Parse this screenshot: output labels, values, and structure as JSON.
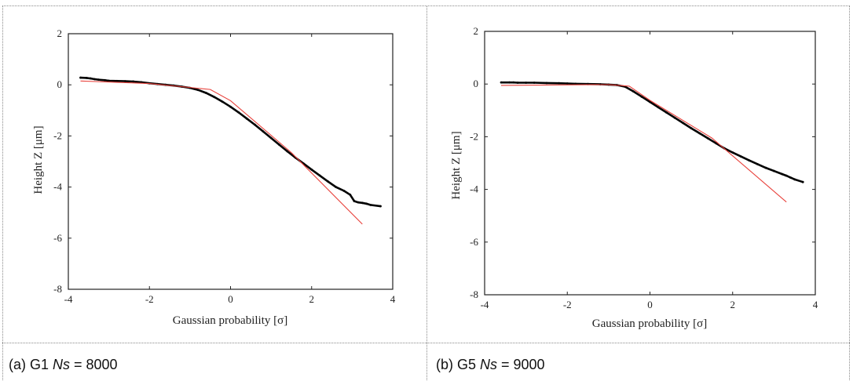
{
  "captions": [
    {
      "prefix": "(a) G1 ",
      "ns_label": "Ns",
      "suffix": " = 8000"
    },
    {
      "prefix": "(b) G5 ",
      "ns_label": "Ns",
      "suffix": " = 9000"
    }
  ],
  "chart_data": [
    {
      "type": "scatter",
      "title": "",
      "xlabel": "Gaussian probability [σ]",
      "ylabel": "Height Z [μm]",
      "xlim": [
        -4,
        4
      ],
      "ylim": [
        -8,
        2
      ],
      "xticks": [
        -4,
        -2,
        0,
        2,
        4
      ],
      "yticks": [
        -8,
        -6,
        -4,
        -2,
        0,
        2
      ],
      "grid": false,
      "marker_color": "#000000",
      "fit_color": "#e8413b",
      "series": [
        {
          "kind": "points",
          "x": [
            -3.7,
            -3.55,
            -3.45,
            -3.35,
            -3.25,
            -3.1,
            -3.0,
            -2.8,
            -2.6,
            -2.4,
            -2.2,
            -2.0,
            -1.8,
            -1.6,
            -1.4,
            -1.2,
            -1.0,
            -0.8,
            -0.6,
            -0.4,
            -0.2,
            0.0,
            0.2,
            0.4,
            0.6,
            0.8,
            1.0,
            1.2,
            1.4,
            1.6,
            1.8,
            2.0,
            2.2,
            2.4,
            2.6,
            2.8,
            2.95,
            3.05,
            3.15,
            3.25,
            3.35,
            3.45,
            3.7
          ],
          "y": [
            0.28,
            0.27,
            0.25,
            0.22,
            0.2,
            0.18,
            0.16,
            0.15,
            0.14,
            0.13,
            0.1,
            0.06,
            0.03,
            0.0,
            -0.03,
            -0.07,
            -0.12,
            -0.2,
            -0.32,
            -0.48,
            -0.66,
            -0.86,
            -1.08,
            -1.32,
            -1.56,
            -1.82,
            -2.08,
            -2.34,
            -2.6,
            -2.85,
            -3.08,
            -3.32,
            -3.55,
            -3.78,
            -4.0,
            -4.15,
            -4.3,
            -4.55,
            -4.6,
            -4.62,
            -4.65,
            -4.7,
            -4.75
          ]
        },
        {
          "kind": "fit_line",
          "x": [
            -3.7,
            -2.0,
            -0.5,
            0.0,
            1.5,
            3.25
          ],
          "y": [
            0.15,
            0.05,
            -0.18,
            -0.62,
            -2.65,
            -5.45
          ]
        }
      ]
    },
    {
      "type": "scatter",
      "title": "",
      "xlabel": "Gaussian probability [σ]",
      "ylabel": "Height Z [μm]",
      "xlim": [
        -4,
        4
      ],
      "ylim": [
        -8,
        2
      ],
      "xticks": [
        -4,
        -2,
        0,
        2,
        4
      ],
      "yticks": [
        -8,
        -6,
        -4,
        -2,
        0,
        2
      ],
      "grid": false,
      "marker_color": "#000000",
      "fit_color": "#e8413b",
      "series": [
        {
          "kind": "points",
          "x": [
            -3.6,
            -3.4,
            -3.3,
            -3.2,
            -3.0,
            -2.8,
            -2.5,
            -2.2,
            -2.0,
            -1.8,
            -1.5,
            -1.2,
            -1.0,
            -0.8,
            -0.6,
            -0.4,
            -0.2,
            0.0,
            0.2,
            0.4,
            0.6,
            0.8,
            1.0,
            1.2,
            1.4,
            1.6,
            1.8,
            2.0,
            2.2,
            2.4,
            2.6,
            2.8,
            3.0,
            3.2,
            3.3,
            3.4,
            3.5,
            3.7
          ],
          "y": [
            0.06,
            0.06,
            0.06,
            0.05,
            0.05,
            0.05,
            0.04,
            0.03,
            0.02,
            0.01,
            0.0,
            -0.01,
            -0.02,
            -0.04,
            -0.1,
            -0.28,
            -0.48,
            -0.68,
            -0.88,
            -1.08,
            -1.28,
            -1.48,
            -1.68,
            -1.87,
            -2.06,
            -2.25,
            -2.44,
            -2.6,
            -2.75,
            -2.9,
            -3.04,
            -3.18,
            -3.3,
            -3.42,
            -3.48,
            -3.55,
            -3.62,
            -3.72
          ]
        },
        {
          "kind": "fit_line",
          "x": [
            -3.6,
            -1.0,
            -0.5,
            0.0,
            1.5,
            3.3
          ],
          "y": [
            -0.05,
            -0.02,
            -0.08,
            -0.62,
            -2.05,
            -4.48
          ]
        }
      ]
    }
  ]
}
